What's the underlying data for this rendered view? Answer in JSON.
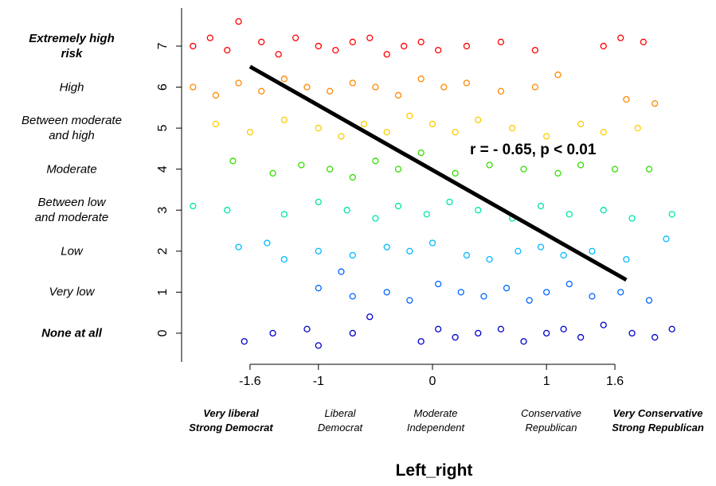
{
  "chart_data": {
    "type": "scatter",
    "x_label": "Left_right",
    "annotation": "r = - 0.65, p < 0.01",
    "xlim": [
      -2.2,
      2.2
    ],
    "ylim": [
      -0.7,
      7.93
    ],
    "xticks": [
      -1.6,
      -1,
      0,
      1,
      1.6
    ],
    "yticks": [
      0,
      1,
      2,
      3,
      4,
      5,
      6,
      7
    ],
    "y_category_labels": [
      "None at all",
      "Very low",
      "Low",
      "Between low\nand moderate",
      "Moderate",
      "Between moderate\nand high",
      "High",
      "Extremely high\nrisk"
    ],
    "x_category_labels": [
      "Very liberal\nStrong Democrat",
      "Liberal\nDemocrat",
      "Moderate\nIndependent",
      "Conservative\nRepublican",
      "Very Conservative\nStrong Republican"
    ],
    "fit": {
      "color": "#000000",
      "x": [
        -1.6,
        1.7
      ],
      "values": [
        6.5,
        1.3
      ]
    },
    "series": [
      {
        "color": "#0000cc",
        "x": [
          -1.65,
          -1.4,
          -1.1,
          -1.0,
          -0.7,
          -0.55,
          -0.1,
          0.05,
          0.2,
          0.4,
          0.6,
          0.8,
          1.0,
          1.15,
          1.3,
          1.5,
          1.75,
          1.95,
          2.1
        ],
        "values": [
          -0.2,
          0.0,
          0.1,
          -0.3,
          0.0,
          0.4,
          -0.2,
          0.1,
          -0.1,
          0.0,
          0.1,
          -0.2,
          0.0,
          0.1,
          -0.1,
          0.2,
          0.0,
          -0.1,
          0.1
        ]
      },
      {
        "color": "#0066ff",
        "x": [
          -1.0,
          -0.8,
          -0.7,
          -0.4,
          -0.2,
          0.05,
          0.25,
          0.45,
          0.65,
          0.85,
          1.0,
          1.2,
          1.4,
          1.65,
          1.9
        ],
        "values": [
          1.1,
          1.5,
          0.9,
          1.0,
          0.8,
          1.2,
          1.0,
          0.9,
          1.1,
          0.8,
          1.0,
          1.2,
          0.9,
          1.0,
          0.8
        ]
      },
      {
        "color": "#00bbff",
        "x": [
          -1.7,
          -1.45,
          -1.3,
          -1.0,
          -0.7,
          -0.4,
          -0.2,
          0.0,
          0.3,
          0.5,
          0.75,
          0.95,
          1.15,
          1.4,
          1.7,
          2.05
        ],
        "values": [
          2.1,
          2.2,
          1.8,
          2.0,
          1.9,
          2.1,
          2.0,
          2.2,
          1.9,
          1.8,
          2.0,
          2.1,
          1.9,
          2.0,
          1.8,
          2.3
        ]
      },
      {
        "color": "#00e6aa",
        "x": [
          -2.1,
          -1.8,
          -1.3,
          -1.0,
          -0.75,
          -0.5,
          -0.3,
          -0.05,
          0.15,
          0.4,
          0.7,
          0.95,
          1.2,
          1.5,
          1.75,
          2.1
        ],
        "values": [
          3.1,
          3.0,
          2.9,
          3.2,
          3.0,
          2.8,
          3.1,
          2.9,
          3.2,
          3.0,
          2.8,
          3.1,
          2.9,
          3.0,
          2.8,
          2.9
        ]
      },
      {
        "color": "#33dd00",
        "x": [
          -1.75,
          -1.4,
          -1.15,
          -0.9,
          -0.7,
          -0.5,
          -0.3,
          -0.1,
          0.2,
          0.5,
          0.8,
          1.1,
          1.3,
          1.6,
          1.9
        ],
        "values": [
          4.2,
          3.9,
          4.1,
          4.0,
          3.8,
          4.2,
          4.0,
          4.4,
          3.9,
          4.1,
          4.0,
          3.9,
          4.1,
          4.0,
          4.0
        ]
      },
      {
        "color": "#ffcc00",
        "x": [
          -1.9,
          -1.6,
          -1.3,
          -1.0,
          -0.8,
          -0.6,
          -0.4,
          -0.2,
          0.0,
          0.2,
          0.4,
          0.7,
          1.0,
          1.3,
          1.5,
          1.8
        ],
        "values": [
          5.1,
          4.9,
          5.2,
          5.0,
          4.8,
          5.1,
          4.9,
          5.3,
          5.1,
          4.9,
          5.2,
          5.0,
          4.8,
          5.1,
          4.9,
          5.0
        ]
      },
      {
        "color": "#ff8800",
        "x": [
          -2.1,
          -1.9,
          -1.7,
          -1.5,
          -1.3,
          -1.1,
          -0.9,
          -0.7,
          -0.5,
          -0.3,
          -0.1,
          0.1,
          0.3,
          0.6,
          0.9,
          1.1,
          1.7,
          1.95
        ],
        "values": [
          6.0,
          5.8,
          6.1,
          5.9,
          6.2,
          6.0,
          5.9,
          6.1,
          6.0,
          5.8,
          6.2,
          6.0,
          6.1,
          5.9,
          6.0,
          6.3,
          5.7,
          5.6
        ]
      },
      {
        "color": "#ff0000",
        "x": [
          -2.1,
          -1.95,
          -1.8,
          -1.7,
          -1.5,
          -1.35,
          -1.2,
          -1.0,
          -0.85,
          -0.7,
          -0.55,
          -0.4,
          -0.25,
          -0.1,
          0.05,
          0.3,
          0.6,
          0.9,
          1.5,
          1.65,
          1.85
        ],
        "values": [
          7.0,
          7.2,
          6.9,
          7.6,
          7.1,
          6.8,
          7.2,
          7.0,
          6.9,
          7.1,
          7.2,
          6.8,
          7.0,
          7.1,
          6.9,
          7.0,
          7.1,
          6.9,
          7.0,
          7.2,
          7.1
        ]
      }
    ]
  }
}
